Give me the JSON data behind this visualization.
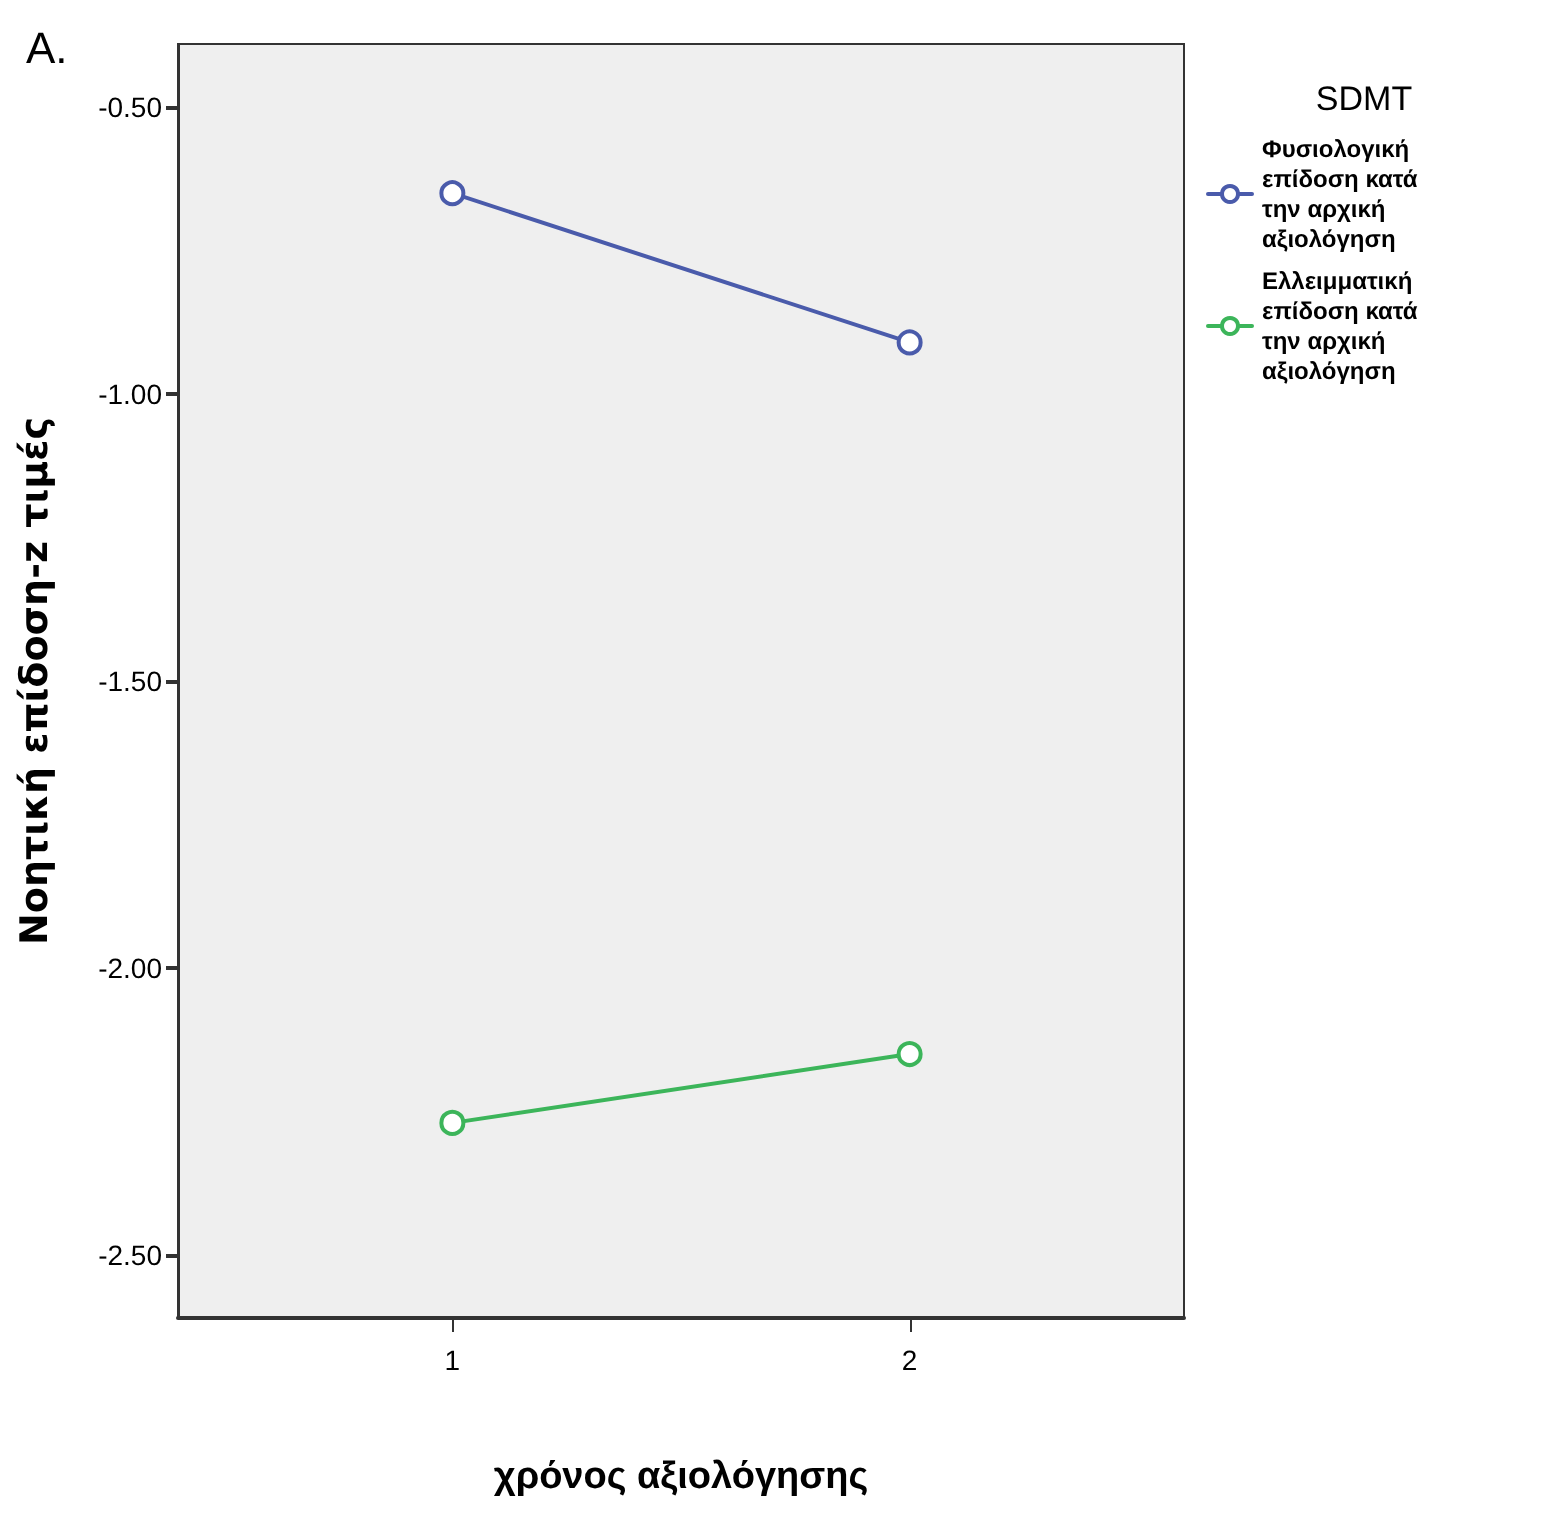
{
  "chart_data": {
    "type": "line",
    "title": "A.",
    "xlabel": "χρόνος αξιολόγησης",
    "ylabel": "Νοητική επίδοση-z τιμές",
    "legend_title": "SDMT",
    "x": [
      1,
      2
    ],
    "series": [
      {
        "name": "Φυσιολογική επίδοση κατά την αρχική αξιολόγηση",
        "color": "#4a5bab",
        "values": [
          -0.65,
          -0.91
        ]
      },
      {
        "name": "Ελλειμματική επίδοση κατά την αρχική αξιολόγηση",
        "color": "#3cb55a",
        "values": [
          -2.27,
          -2.15
        ]
      }
    ],
    "xlim": [
      0.4,
      2.6
    ],
    "xticks": [
      1,
      2
    ],
    "ylim": [
      -2.61,
      -0.39
    ],
    "yticks": [
      {
        "value": -0.5,
        "label": "-0.50"
      },
      {
        "value": -1.0,
        "label": "-1.00"
      },
      {
        "value": -1.5,
        "label": "-1.50"
      },
      {
        "value": -2.0,
        "label": "-2.00"
      },
      {
        "value": -2.5,
        "label": "-2.50"
      }
    ],
    "grid": false,
    "legend": "right",
    "marker": "circle",
    "line_style": "solid"
  }
}
